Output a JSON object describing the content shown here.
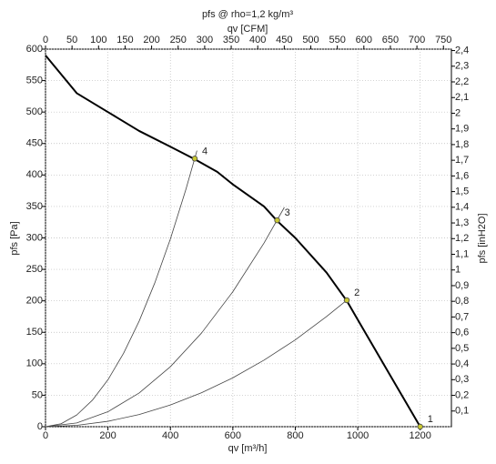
{
  "chart_data": {
    "type": "line",
    "title": "pfs @ rho=1,2 kg/m³",
    "x_label": "qv [m³/h]",
    "y_label": "pfs [Pa]",
    "x2_label": "qv [CFM]",
    "y2_label": "pfs [inH2O]",
    "xlim": [
      0,
      1300
    ],
    "xticks": [
      0,
      200,
      400,
      600,
      800,
      1000,
      1200
    ],
    "ylim": [
      0,
      600
    ],
    "yticks": [
      0,
      50,
      100,
      150,
      200,
      250,
      300,
      350,
      400,
      450,
      500,
      550,
      600
    ],
    "x2lim": [
      0,
      765
    ],
    "x2ticks": [
      0,
      50,
      100,
      150,
      200,
      250,
      300,
      350,
      400,
      450,
      500,
      550,
      600,
      650,
      700,
      750
    ],
    "y2lim": [
      0,
      2.409
    ],
    "y2ticks": [
      {
        "value": 0.1,
        "label": "0,1"
      },
      {
        "value": 0.2,
        "label": "0,2"
      },
      {
        "value": 0.3,
        "label": "0,3"
      },
      {
        "value": 0.4,
        "label": "0,4"
      },
      {
        "value": 0.5,
        "label": "0,5"
      },
      {
        "value": 0.6,
        "label": "0,6"
      },
      {
        "value": 0.7,
        "label": "0,7"
      },
      {
        "value": 0.8,
        "label": "0,8"
      },
      {
        "value": 0.9,
        "label": "0,9"
      },
      1,
      {
        "value": 1.1,
        "label": "1,1"
      },
      {
        "value": 1.2,
        "label": "1,2"
      },
      {
        "value": 1.3,
        "label": "1,3"
      },
      {
        "value": 1.4,
        "label": "1,4"
      },
      {
        "value": 1.5,
        "label": "1,5"
      },
      {
        "value": 1.6,
        "label": "1,6"
      },
      {
        "value": 1.7,
        "label": "1,7"
      },
      {
        "value": 1.8,
        "label": "1,8"
      },
      {
        "value": 1.9,
        "label": "1,9"
      },
      2,
      {
        "value": 2.1,
        "label": "2,1"
      },
      {
        "value": 2.2,
        "label": "2,2"
      },
      {
        "value": 2.3,
        "label": "2,3"
      },
      {
        "value": 2.4,
        "label": "2,4"
      }
    ],
    "grid": true,
    "series": [
      {
        "color": "#000000",
        "width": 2,
        "x": [
          0,
          100,
          200,
          300,
          400,
          478,
          550,
          600,
          700,
          742,
          800,
          900,
          965,
          1000,
          1100,
          1200
        ],
        "values": [
          590,
          530,
          500,
          470,
          445,
          425,
          405,
          385,
          350,
          327,
          300,
          245,
          200,
          170,
          85,
          0
        ]
      },
      {
        "color": "#444444",
        "width": 0.8,
        "x": [
          0,
          50,
          100,
          150,
          200,
          250,
          300,
          350,
          400,
          450,
          485
        ],
        "values": [
          0,
          4.7,
          18.6,
          42,
          74.6,
          116.6,
          167.8,
          228.5,
          298.4,
          377.7,
          438.7
        ]
      },
      {
        "color": "#444444",
        "width": 0.8,
        "x": [
          0,
          100,
          200,
          300,
          400,
          500,
          600,
          700,
          765
        ],
        "values": [
          0,
          6,
          23.8,
          53.6,
          95.3,
          149,
          214.5,
          292,
          348.6
        ]
      },
      {
        "color": "#444444",
        "width": 0.8,
        "x": [
          0,
          100,
          200,
          300,
          400,
          500,
          600,
          700,
          800,
          900,
          965
        ],
        "values": [
          0,
          2.2,
          8.6,
          19.4,
          34.5,
          54,
          77.7,
          105.8,
          138,
          175,
          201
        ]
      }
    ],
    "points": {
      "color": "#c8c832",
      "x": [
        1200,
        965,
        742,
        478
      ],
      "values": [
        0,
        201,
        328,
        426
      ],
      "labels": [
        "1",
        "2",
        "3",
        "4"
      ]
    }
  }
}
